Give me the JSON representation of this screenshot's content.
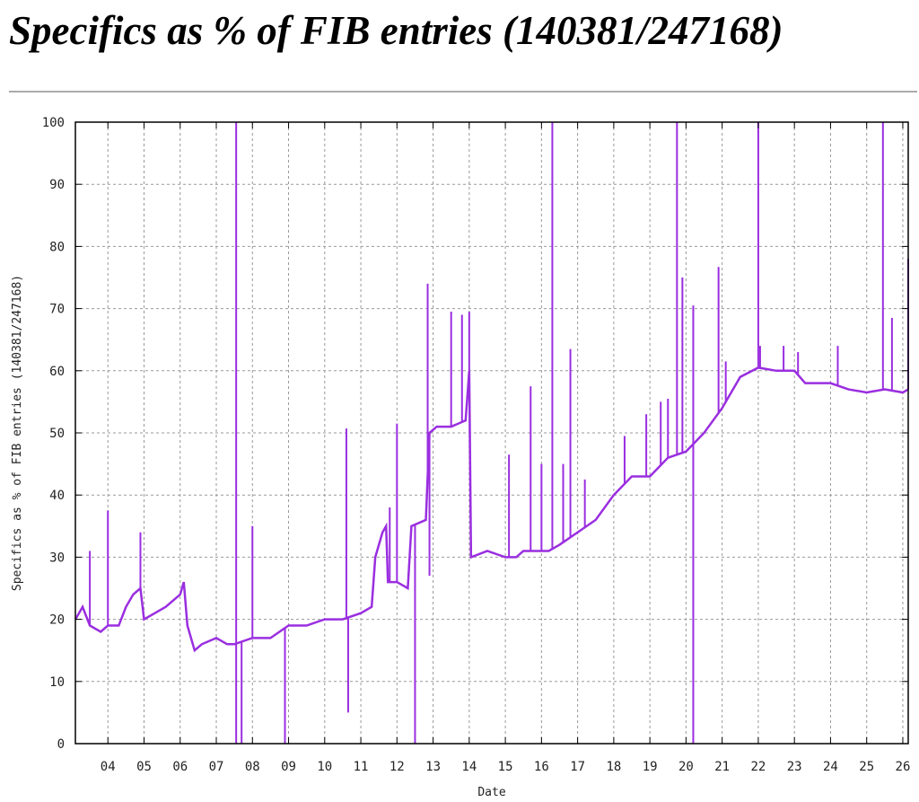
{
  "title": "Specifics as % of FIB entries (140381/247168)",
  "chart_data": {
    "type": "line",
    "title": "Specifics as % of FIB entries (140381/247168)",
    "xlabel": "Date",
    "ylabel": "Specifics as % of FIB entries (140381/247168)",
    "xlim": [
      3.1,
      26.15
    ],
    "ylim": [
      0,
      100
    ],
    "grid": true,
    "color": "#9a2ee0",
    "x_ticks": [
      4,
      5,
      6,
      7,
      8,
      9,
      10,
      11,
      12,
      13,
      14,
      15,
      16,
      17,
      18,
      19,
      20,
      21,
      22,
      23,
      24,
      25,
      26
    ],
    "x_tick_labels": [
      "04",
      "05",
      "06",
      "07",
      "08",
      "09",
      "10",
      "11",
      "12",
      "13",
      "14",
      "15",
      "16",
      "17",
      "18",
      "19",
      "20",
      "21",
      "22",
      "23",
      "24",
      "25",
      "26"
    ],
    "y_ticks": [
      0,
      10,
      20,
      30,
      40,
      50,
      60,
      70,
      80,
      90,
      100
    ],
    "y_tick_labels": [
      "0",
      "10",
      "20",
      "30",
      "40",
      "50",
      "60",
      "70",
      "80",
      "90",
      "100"
    ],
    "series": [
      {
        "points": [
          [
            3.1,
            20
          ],
          [
            3.3,
            22
          ],
          [
            3.5,
            19
          ],
          [
            3.8,
            18
          ],
          [
            4.0,
            19
          ],
          [
            4.3,
            19
          ],
          [
            4.5,
            22
          ],
          [
            4.7,
            24
          ],
          [
            4.9,
            25
          ],
          [
            5.0,
            20
          ],
          [
            5.3,
            21
          ],
          [
            5.6,
            22
          ],
          [
            6.0,
            24
          ],
          [
            6.1,
            26
          ],
          [
            6.2,
            19
          ],
          [
            6.4,
            15
          ],
          [
            6.6,
            16
          ],
          [
            7.0,
            17
          ],
          [
            7.3,
            16
          ],
          [
            7.5,
            16
          ],
          [
            8.0,
            17
          ],
          [
            8.5,
            17
          ],
          [
            9.0,
            19
          ],
          [
            9.5,
            19
          ],
          [
            10.0,
            20
          ],
          [
            10.5,
            20
          ],
          [
            11.0,
            21
          ],
          [
            11.3,
            22
          ],
          [
            11.4,
            30
          ],
          [
            11.6,
            34
          ],
          [
            11.7,
            35
          ],
          [
            11.75,
            26
          ],
          [
            12.0,
            26
          ],
          [
            12.3,
            25
          ],
          [
            12.4,
            35
          ],
          [
            12.8,
            36
          ],
          [
            12.9,
            50
          ],
          [
            13.1,
            51
          ],
          [
            13.5,
            51
          ],
          [
            13.9,
            52
          ],
          [
            14.0,
            60
          ],
          [
            14.05,
            30
          ],
          [
            14.5,
            31
          ],
          [
            15.0,
            30
          ],
          [
            15.3,
            30
          ],
          [
            15.5,
            31
          ],
          [
            16.0,
            31
          ],
          [
            16.2,
            31
          ],
          [
            16.5,
            32
          ],
          [
            17.0,
            34
          ],
          [
            17.5,
            36
          ],
          [
            18.0,
            40
          ],
          [
            18.5,
            43
          ],
          [
            19.0,
            43
          ],
          [
            19.5,
            46
          ],
          [
            20.0,
            47
          ],
          [
            20.5,
            50
          ],
          [
            21.0,
            54
          ],
          [
            21.5,
            59
          ],
          [
            22.0,
            60.5
          ],
          [
            22.5,
            60
          ],
          [
            23.0,
            60
          ],
          [
            23.3,
            58
          ],
          [
            24.0,
            58
          ],
          [
            24.5,
            57
          ],
          [
            25.0,
            56.5
          ],
          [
            25.5,
            57
          ],
          [
            26.0,
            56.5
          ],
          [
            26.15,
            57
          ]
        ],
        "spikes": [
          [
            3.5,
            31
          ],
          [
            4.0,
            37.5
          ],
          [
            4.9,
            34
          ],
          [
            7.55,
            100
          ],
          [
            7.55,
            0
          ],
          [
            7.7,
            0
          ],
          [
            8.0,
            35
          ],
          [
            8.9,
            0
          ],
          [
            10.6,
            50.7
          ],
          [
            10.65,
            5
          ],
          [
            11.8,
            38
          ],
          [
            12.0,
            51.5
          ],
          [
            12.5,
            0
          ],
          [
            12.85,
            74
          ],
          [
            12.9,
            27
          ],
          [
            13.5,
            69.5
          ],
          [
            13.8,
            69
          ],
          [
            14.0,
            69.5
          ],
          [
            15.1,
            46.5
          ],
          [
            15.7,
            57.5
          ],
          [
            16.0,
            45
          ],
          [
            16.3,
            100
          ],
          [
            16.6,
            45
          ],
          [
            16.8,
            63.5
          ],
          [
            17.2,
            42.5
          ],
          [
            18.3,
            49.5
          ],
          [
            18.9,
            53
          ],
          [
            19.3,
            55
          ],
          [
            19.5,
            55.5
          ],
          [
            19.75,
            100
          ],
          [
            19.9,
            75
          ],
          [
            20.2,
            70.5
          ],
          [
            20.2,
            0
          ],
          [
            20.9,
            76.7
          ],
          [
            21.1,
            61.5
          ],
          [
            22.0,
            100
          ],
          [
            22.05,
            64
          ],
          [
            22.7,
            64
          ],
          [
            23.1,
            63
          ],
          [
            24.2,
            64
          ],
          [
            25.45,
            100
          ],
          [
            25.7,
            68.5
          ],
          [
            26.15,
            78
          ]
        ]
      }
    ]
  }
}
